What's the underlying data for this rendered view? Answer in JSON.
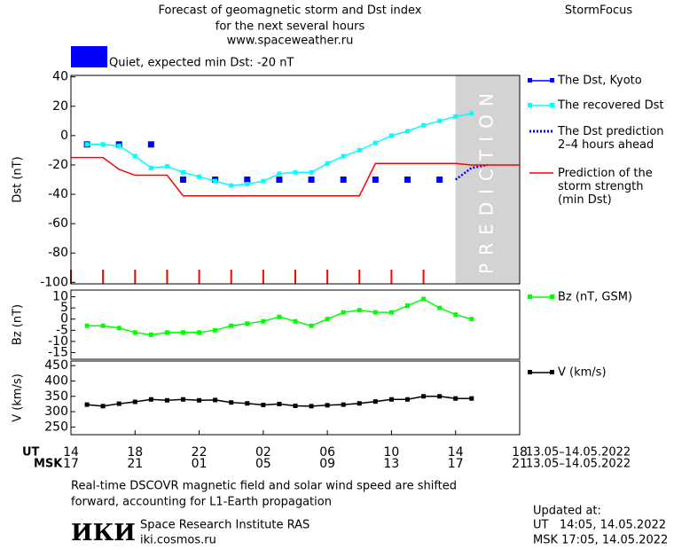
{
  "header": {
    "title_lines": [
      "Forecast of geomagnetic storm and Dst index",
      "for the next several hours",
      "www.spaceweather.ru"
    ],
    "brand": "StormFocus",
    "status": "Quiet, expected min Dst: -20 nT",
    "status_color": "#0000ff"
  },
  "chart_data": [
    {
      "type": "line",
      "y_label": "Dst (nT)",
      "ylim": [
        -101,
        41
      ],
      "yticks": [
        40,
        20,
        0,
        -20,
        -40,
        -60,
        -80,
        -100
      ],
      "prediction_region": {
        "label": "PREDICTION",
        "x": [
          24,
          28
        ],
        "color": "#d3d3d3"
      },
      "series": [
        {
          "name": "The Dst, Kyoto",
          "color": "#0000ff",
          "style": "markers",
          "values": [
            null,
            -6,
            null,
            -6,
            null,
            -6,
            null,
            -30,
            null,
            -30,
            null,
            -30,
            null,
            -30,
            null,
            -30,
            null,
            -30,
            null,
            -30,
            null,
            -30,
            null,
            -30,
            null,
            null,
            null,
            null,
            null
          ]
        },
        {
          "name": "The recovered Dst",
          "color": "#00ffff",
          "style": "line-markers",
          "values": [
            null,
            -6,
            -6,
            -7,
            -14,
            -22,
            -21,
            -25,
            -28,
            -31,
            -34,
            -33,
            -31,
            -26,
            -25,
            -25,
            -19,
            -14,
            -10,
            -5,
            0,
            3,
            7,
            10,
            13,
            15,
            null,
            null,
            null
          ]
        },
        {
          "name": "The Dst prediction\n2–4 hours ahead",
          "color": "#0000ff",
          "style": "dotted",
          "values": [
            null,
            null,
            null,
            null,
            null,
            null,
            null,
            null,
            null,
            null,
            null,
            null,
            null,
            null,
            null,
            null,
            null,
            null,
            null,
            null,
            null,
            null,
            null,
            null,
            -30,
            -22,
            -20,
            null,
            null
          ]
        },
        {
          "name": "Prediction of the\nstorm strength\n(min Dst)",
          "color": "#ff0000",
          "style": "line",
          "values": [
            -15,
            -15,
            -15,
            -23,
            -27,
            -27,
            -27,
            -41,
            -41,
            -41,
            -41,
            -41,
            -41,
            -41,
            -41,
            -41,
            -41,
            -41,
            -41,
            -19,
            -19,
            -19,
            -19,
            -19,
            -19,
            -20,
            -20,
            -20,
            -20
          ]
        }
      ]
    },
    {
      "type": "line",
      "y_label": "Bz (nT)",
      "ylim": [
        -18,
        13
      ],
      "yticks": [
        10,
        5,
        0,
        -5,
        -10,
        -15
      ],
      "series": [
        {
          "name": "Bz (nT, GSM)",
          "color": "#00ff00",
          "style": "line-markers",
          "values": [
            null,
            -3,
            -3,
            -4,
            -6,
            -7,
            -6,
            -6,
            -6,
            -5,
            -3,
            -2,
            -1,
            1,
            -1,
            -3,
            0,
            3,
            4,
            3,
            3,
            6,
            9,
            5,
            2,
            0,
            null,
            null,
            null
          ]
        }
      ]
    },
    {
      "type": "line",
      "y_label": "V (km/s)",
      "ylim": [
        225,
        465
      ],
      "yticks": [
        450,
        400,
        350,
        300,
        250
      ],
      "series": [
        {
          "name": "V (km/s)",
          "color": "#000000",
          "style": "line-markers",
          "values": [
            null,
            323,
            318,
            326,
            332,
            340,
            337,
            340,
            337,
            338,
            330,
            327,
            322,
            325,
            319,
            318,
            321,
            323,
            327,
            333,
            340,
            340,
            350,
            350,
            343,
            343,
            null,
            null,
            null
          ]
        }
      ],
      "x_row_label": "UT",
      "categories": [
        "14",
        null,
        null,
        null,
        "18",
        null,
        null,
        null,
        "22",
        null,
        null,
        null,
        "02",
        null,
        null,
        null,
        "06",
        null,
        null,
        null,
        "10",
        null,
        null,
        null,
        "14",
        null,
        null,
        null,
        "18"
      ],
      "x2_row_label": "MSK",
      "categories_msk": [
        "17",
        null,
        null,
        null,
        "21",
        null,
        null,
        null,
        "01",
        null,
        null,
        null,
        "05",
        null,
        null,
        null,
        "09",
        null,
        null,
        null,
        "13",
        null,
        null,
        null,
        "17",
        null,
        null,
        null,
        "21"
      ],
      "date_range": "13.05–14.05.2022"
    }
  ],
  "footer": {
    "note_lines": [
      "Real-time DSCOVR magnetic field and solar wind speed are shifted",
      "forward, accounting for L1-Earth propagation"
    ],
    "logo": "ИКИ",
    "institute": "Space Research Institute RAS",
    "site": "iki.cosmos.ru",
    "updated_title": "Updated at:",
    "updated_ut": "UT   14:05, 14.05.2022",
    "updated_msk": "MSK 17:05, 14.05.2022"
  }
}
